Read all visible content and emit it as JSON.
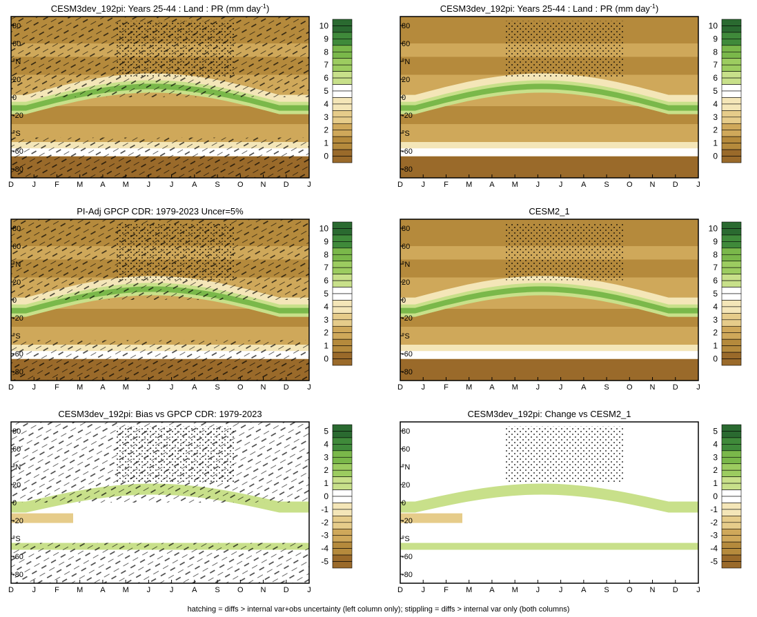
{
  "footnote": "hatching = diffs > internal var+obs uncertainty (left column only); stippling = diffs > internal var only (both columns)",
  "colors": {
    "brown_dark": "#9a6a2a",
    "brown": "#b58a3c",
    "tan": "#cfa85a",
    "light_tan": "#e6cc8a",
    "cream": "#f4e6b8",
    "white": "#ffffff",
    "light_green": "#c8e08a",
    "green": "#7ab84a",
    "dark_green": "#2a6a30",
    "hatch": "#000000"
  },
  "chart_data": [
    {
      "type": "heatmap",
      "id": "tl",
      "title": "CESM3dev_192pi: Years 25-44 : Land : PR (mm day",
      "title_sup": "-1",
      "title_tail": ")",
      "x_ticks": [
        "D",
        "J",
        "F",
        "M",
        "A",
        "M",
        "J",
        "J",
        "A",
        "S",
        "O",
        "N",
        "D",
        "J"
      ],
      "y_ticks": [
        "80",
        "60",
        "°N",
        "20",
        "0",
        "-20",
        "°S",
        "-60",
        "-80"
      ],
      "ylim": [
        -90,
        90
      ],
      "colorbar": [
        "10",
        "9",
        "8",
        "7",
        "6",
        "5",
        "4",
        "3",
        "2",
        "1",
        "0"
      ],
      "overlay": "hatching and stippling"
    },
    {
      "type": "heatmap",
      "id": "tr",
      "title": "CESM3dev_192pi: Years 25-44 : Land : PR (mm day",
      "title_sup": "-1",
      "title_tail": ")",
      "x_ticks": [
        "D",
        "J",
        "F",
        "M",
        "A",
        "M",
        "J",
        "J",
        "A",
        "S",
        "O",
        "N",
        "D",
        "J"
      ],
      "y_ticks": [
        "80",
        "60",
        "°N",
        "20",
        "0",
        "-20",
        "°S",
        "-60",
        "-80"
      ],
      "ylim": [
        -90,
        90
      ],
      "colorbar": [
        "10",
        "9",
        "8",
        "7",
        "6",
        "5",
        "4",
        "3",
        "2",
        "1",
        "0"
      ],
      "overlay": "stippling"
    },
    {
      "type": "heatmap",
      "id": "ml",
      "title": "PI-Adj GPCP CDR: 1979-2023 Uncer=5%",
      "x_ticks": [
        "D",
        "J",
        "F",
        "M",
        "A",
        "M",
        "J",
        "J",
        "A",
        "S",
        "O",
        "N",
        "D",
        "J"
      ],
      "y_ticks": [
        "80",
        "60",
        "°N",
        "20",
        "0",
        "-20",
        "°S",
        "-60",
        "-80"
      ],
      "ylim": [
        -90,
        90
      ],
      "colorbar": [
        "10",
        "9",
        "8",
        "7",
        "6",
        "5",
        "4",
        "3",
        "2",
        "1",
        "0"
      ],
      "overlay": "hatching and stippling"
    },
    {
      "type": "heatmap",
      "id": "mr",
      "title": "CESM2_1",
      "x_ticks": [
        "D",
        "J",
        "F",
        "M",
        "A",
        "M",
        "J",
        "J",
        "A",
        "S",
        "O",
        "N",
        "D",
        "J"
      ],
      "y_ticks": [
        "80",
        "60",
        "°N",
        "20",
        "0",
        "-20",
        "°S",
        "-60",
        "-80"
      ],
      "ylim": [
        -90,
        90
      ],
      "colorbar": [
        "10",
        "9",
        "8",
        "7",
        "6",
        "5",
        "4",
        "3",
        "2",
        "1",
        "0"
      ],
      "overlay": "stippling"
    },
    {
      "type": "heatmap",
      "id": "bl",
      "title": "CESM3dev_192pi: Bias vs GPCP CDR: 1979-2023",
      "x_ticks": [
        "D",
        "J",
        "F",
        "M",
        "A",
        "M",
        "J",
        "J",
        "A",
        "S",
        "O",
        "N",
        "D",
        "J"
      ],
      "y_ticks": [
        "80",
        "60",
        "°N",
        "20",
        "0",
        "-20",
        "°S",
        "-60",
        "-80"
      ],
      "ylim": [
        -90,
        90
      ],
      "colorbar": [
        "5",
        "4",
        "3",
        "2",
        "1",
        "0",
        "-1",
        "-2",
        "-3",
        "-4",
        "-5"
      ],
      "overlay": "hatching and stippling"
    },
    {
      "type": "heatmap",
      "id": "br",
      "title": "CESM3dev_192pi: Change vs CESM2_1",
      "x_ticks": [
        "D",
        "J",
        "F",
        "M",
        "A",
        "M",
        "J",
        "J",
        "A",
        "S",
        "O",
        "N",
        "D",
        "J"
      ],
      "y_ticks": [
        "80",
        "60",
        "°N",
        "20",
        "0",
        "-20",
        "°S",
        "-60",
        "-80"
      ],
      "ylim": [
        -90,
        90
      ],
      "colorbar": [
        "5",
        "4",
        "3",
        "2",
        "1",
        "0",
        "-1",
        "-2",
        "-3",
        "-4",
        "-5"
      ],
      "overlay": "stippling"
    }
  ]
}
